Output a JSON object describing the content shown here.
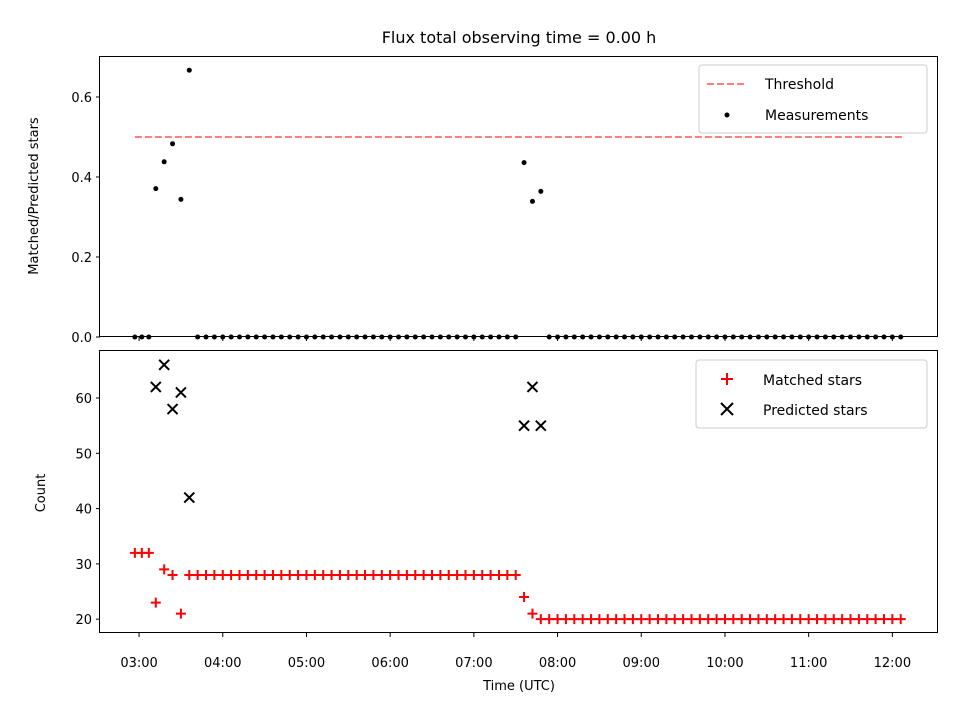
{
  "chart_data": [
    {
      "type": "scatter",
      "title": "Flux total observing time = 0.00 h",
      "xlabel": "",
      "ylabel": "Matched/Predicted stars",
      "ylim": [
        0,
        0.7
      ],
      "yticks": [
        "0.0",
        "0.2",
        "0.4",
        "0.6"
      ],
      "grid": false,
      "legend_position": "top-right",
      "threshold": {
        "name": "Threshold",
        "value": 0.5,
        "x_range": [
          "02:57",
          "12:07"
        ],
        "color": "#ff7f7f",
        "style": "dashed"
      },
      "series": [
        {
          "name": "Measurements",
          "color": "#000000",
          "marker": "dot",
          "points": [
            [
              "02:57",
              0.0
            ],
            [
              "03:02",
              0.0
            ],
            [
              "03:07",
              0.0
            ],
            [
              "03:12",
              0.371
            ],
            [
              "03:18",
              0.438
            ],
            [
              "03:24",
              0.483
            ],
            [
              "03:30",
              0.344
            ],
            [
              "03:36",
              0.667
            ],
            [
              "03:42",
              0.0
            ],
            [
              "03:48",
              0.0
            ],
            [
              "03:54",
              0.0
            ],
            [
              "04:00",
              0.0
            ],
            [
              "04:06",
              0.0
            ],
            [
              "04:12",
              0.0
            ],
            [
              "04:18",
              0.0
            ],
            [
              "04:24",
              0.0
            ],
            [
              "04:30",
              0.0
            ],
            [
              "04:36",
              0.0
            ],
            [
              "04:42",
              0.0
            ],
            [
              "04:48",
              0.0
            ],
            [
              "04:54",
              0.0
            ],
            [
              "05:00",
              0.0
            ],
            [
              "05:06",
              0.0
            ],
            [
              "05:12",
              0.0
            ],
            [
              "05:18",
              0.0
            ],
            [
              "05:24",
              0.0
            ],
            [
              "05:30",
              0.0
            ],
            [
              "05:36",
              0.0
            ],
            [
              "05:42",
              0.0
            ],
            [
              "05:48",
              0.0
            ],
            [
              "05:54",
              0.0
            ],
            [
              "06:00",
              0.0
            ],
            [
              "06:06",
              0.0
            ],
            [
              "06:12",
              0.0
            ],
            [
              "06:18",
              0.0
            ],
            [
              "06:24",
              0.0
            ],
            [
              "06:30",
              0.0
            ],
            [
              "06:36",
              0.0
            ],
            [
              "06:42",
              0.0
            ],
            [
              "06:48",
              0.0
            ],
            [
              "06:54",
              0.0
            ],
            [
              "07:00",
              0.0
            ],
            [
              "07:06",
              0.0
            ],
            [
              "07:12",
              0.0
            ],
            [
              "07:18",
              0.0
            ],
            [
              "07:24",
              0.0
            ],
            [
              "07:30",
              0.0
            ],
            [
              "07:36",
              0.436
            ],
            [
              "07:42",
              0.339
            ],
            [
              "07:48",
              0.364
            ],
            [
              "07:54",
              0.0
            ],
            [
              "08:00",
              0.0
            ],
            [
              "08:06",
              0.0
            ],
            [
              "08:12",
              0.0
            ],
            [
              "08:18",
              0.0
            ],
            [
              "08:24",
              0.0
            ],
            [
              "08:30",
              0.0
            ],
            [
              "08:36",
              0.0
            ],
            [
              "08:42",
              0.0
            ],
            [
              "08:48",
              0.0
            ],
            [
              "08:54",
              0.0
            ],
            [
              "09:00",
              0.0
            ],
            [
              "09:06",
              0.0
            ],
            [
              "09:12",
              0.0
            ],
            [
              "09:18",
              0.0
            ],
            [
              "09:24",
              0.0
            ],
            [
              "09:30",
              0.0
            ],
            [
              "09:36",
              0.0
            ],
            [
              "09:42",
              0.0
            ],
            [
              "09:48",
              0.0
            ],
            [
              "09:54",
              0.0
            ],
            [
              "10:00",
              0.0
            ],
            [
              "10:06",
              0.0
            ],
            [
              "10:12",
              0.0
            ],
            [
              "10:18",
              0.0
            ],
            [
              "10:24",
              0.0
            ],
            [
              "10:30",
              0.0
            ],
            [
              "10:36",
              0.0
            ],
            [
              "10:42",
              0.0
            ],
            [
              "10:48",
              0.0
            ],
            [
              "10:54",
              0.0
            ],
            [
              "11:00",
              0.0
            ],
            [
              "11:06",
              0.0
            ],
            [
              "11:12",
              0.0
            ],
            [
              "11:18",
              0.0
            ],
            [
              "11:24",
              0.0
            ],
            [
              "11:30",
              0.0
            ],
            [
              "11:36",
              0.0
            ],
            [
              "11:42",
              0.0
            ],
            [
              "11:48",
              0.0
            ],
            [
              "11:54",
              0.0
            ],
            [
              "12:00",
              0.0
            ],
            [
              "12:06",
              0.0
            ]
          ]
        }
      ]
    },
    {
      "type": "scatter",
      "title": "",
      "xlabel": "Time (UTC)",
      "ylabel": "Count",
      "xlim": [
        "02:32",
        "12:32"
      ],
      "xticks": [
        "03:00",
        "04:00",
        "05:00",
        "06:00",
        "07:00",
        "08:00",
        "09:00",
        "10:00",
        "11:00",
        "12:00"
      ],
      "ylim": [
        17.5,
        68.5
      ],
      "yticks": [
        "20",
        "30",
        "40",
        "50",
        "60"
      ],
      "grid": false,
      "legend_position": "top-right",
      "series": [
        {
          "name": "Matched stars",
          "color": "#ff0000",
          "marker": "plus",
          "points": [
            [
              "02:57",
              32
            ],
            [
              "03:02",
              32
            ],
            [
              "03:07",
              32
            ],
            [
              "03:12",
              23
            ],
            [
              "03:18",
              29
            ],
            [
              "03:24",
              28
            ],
            [
              "03:30",
              21
            ],
            [
              "03:36",
              28
            ],
            [
              "03:42",
              28
            ],
            [
              "03:48",
              28
            ],
            [
              "03:54",
              28
            ],
            [
              "04:00",
              28
            ],
            [
              "04:06",
              28
            ],
            [
              "04:12",
              28
            ],
            [
              "04:18",
              28
            ],
            [
              "04:24",
              28
            ],
            [
              "04:30",
              28
            ],
            [
              "04:36",
              28
            ],
            [
              "04:42",
              28
            ],
            [
              "04:48",
              28
            ],
            [
              "04:54",
              28
            ],
            [
              "05:00",
              28
            ],
            [
              "05:06",
              28
            ],
            [
              "05:12",
              28
            ],
            [
              "05:18",
              28
            ],
            [
              "05:24",
              28
            ],
            [
              "05:30",
              28
            ],
            [
              "05:36",
              28
            ],
            [
              "05:42",
              28
            ],
            [
              "05:48",
              28
            ],
            [
              "05:54",
              28
            ],
            [
              "06:00",
              28
            ],
            [
              "06:06",
              28
            ],
            [
              "06:12",
              28
            ],
            [
              "06:18",
              28
            ],
            [
              "06:24",
              28
            ],
            [
              "06:30",
              28
            ],
            [
              "06:36",
              28
            ],
            [
              "06:42",
              28
            ],
            [
              "06:48",
              28
            ],
            [
              "06:54",
              28
            ],
            [
              "07:00",
              28
            ],
            [
              "07:06",
              28
            ],
            [
              "07:12",
              28
            ],
            [
              "07:18",
              28
            ],
            [
              "07:24",
              28
            ],
            [
              "07:30",
              28
            ],
            [
              "07:36",
              24
            ],
            [
              "07:42",
              21
            ],
            [
              "07:48",
              20
            ],
            [
              "07:54",
              20
            ],
            [
              "08:00",
              20
            ],
            [
              "08:06",
              20
            ],
            [
              "08:12",
              20
            ],
            [
              "08:18",
              20
            ],
            [
              "08:24",
              20
            ],
            [
              "08:30",
              20
            ],
            [
              "08:36",
              20
            ],
            [
              "08:42",
              20
            ],
            [
              "08:48",
              20
            ],
            [
              "08:54",
              20
            ],
            [
              "09:00",
              20
            ],
            [
              "09:06",
              20
            ],
            [
              "09:12",
              20
            ],
            [
              "09:18",
              20
            ],
            [
              "09:24",
              20
            ],
            [
              "09:30",
              20
            ],
            [
              "09:36",
              20
            ],
            [
              "09:42",
              20
            ],
            [
              "09:48",
              20
            ],
            [
              "09:54",
              20
            ],
            [
              "10:00",
              20
            ],
            [
              "10:06",
              20
            ],
            [
              "10:12",
              20
            ],
            [
              "10:18",
              20
            ],
            [
              "10:24",
              20
            ],
            [
              "10:30",
              20
            ],
            [
              "10:36",
              20
            ],
            [
              "10:42",
              20
            ],
            [
              "10:48",
              20
            ],
            [
              "10:54",
              20
            ],
            [
              "11:00",
              20
            ],
            [
              "11:06",
              20
            ],
            [
              "11:12",
              20
            ],
            [
              "11:18",
              20
            ],
            [
              "11:24",
              20
            ],
            [
              "11:30",
              20
            ],
            [
              "11:36",
              20
            ],
            [
              "11:42",
              20
            ],
            [
              "11:48",
              20
            ],
            [
              "11:54",
              20
            ],
            [
              "12:00",
              20
            ],
            [
              "12:06",
              20
            ]
          ]
        },
        {
          "name": "Predicted stars",
          "color": "#000000",
          "marker": "x",
          "points": [
            [
              "03:12",
              62
            ],
            [
              "03:18",
              66
            ],
            [
              "03:24",
              58
            ],
            [
              "03:30",
              61
            ],
            [
              "03:36",
              42
            ],
            [
              "07:36",
              55
            ],
            [
              "07:42",
              62
            ],
            [
              "07:48",
              55
            ]
          ]
        }
      ]
    }
  ]
}
